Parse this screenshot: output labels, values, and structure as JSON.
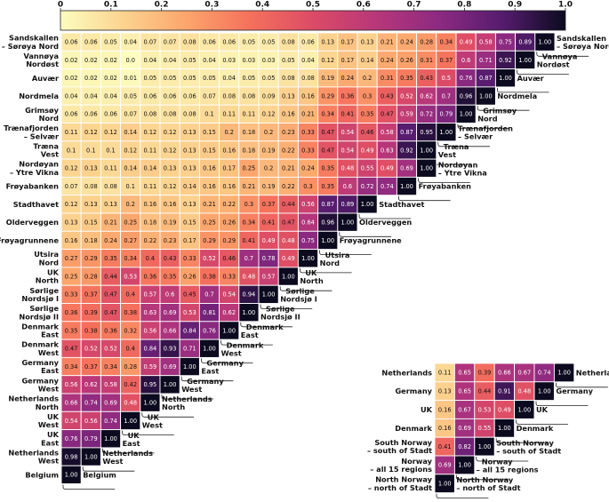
{
  "chart_data": [
    {
      "type": "heatmap",
      "title": "",
      "colorbar": {
        "min": 0,
        "max": 1,
        "ticks": [
          0,
          0.1,
          0.2,
          0.3,
          0.4,
          0.5,
          0.6,
          0.7,
          0.8,
          0.9,
          1.0
        ],
        "tick_labels": [
          "0",
          "0.1",
          "0.2",
          "0.3",
          "0.4",
          "0.5",
          "0.6",
          "0.7",
          "0.8",
          "0.9",
          "1.0"
        ],
        "colormap": "magma"
      },
      "rows": [
        {
          "label": [
            "Sandskallen",
            "– Sørøya Nord"
          ],
          "values": [
            0.06,
            0.06,
            0.05,
            0.04,
            0.07,
            0.07,
            0.08,
            0.06,
            0.06,
            0.05,
            0.05,
            0.08,
            0.06,
            0.13,
            0.17,
            0.13,
            0.21,
            0.24,
            0.28,
            0.34,
            0.49,
            0.58,
            0.75,
            0.89,
            1.0
          ]
        },
        {
          "label": [
            "Vannøya",
            "Nordøst"
          ],
          "values": [
            0.02,
            0.02,
            0.02,
            0.0,
            0.04,
            0.04,
            0.05,
            0.04,
            0.03,
            0.03,
            0.03,
            0.05,
            0.04,
            0.12,
            0.17,
            0.14,
            0.24,
            0.26,
            0.31,
            0.37,
            0.6,
            0.71,
            0.92,
            1.0
          ]
        },
        {
          "label": [
            "Auvær"
          ],
          "values": [
            0.02,
            0.02,
            0.02,
            0.01,
            0.05,
            0.05,
            0.05,
            0.05,
            0.04,
            0.05,
            0.05,
            0.08,
            0.08,
            0.19,
            0.24,
            0.2,
            0.31,
            0.35,
            0.43,
            0.5,
            0.76,
            0.87,
            1.0
          ]
        },
        {
          "label": [
            "Nordmela"
          ],
          "values": [
            0.04,
            0.04,
            0.04,
            0.05,
            0.06,
            0.06,
            0.06,
            0.07,
            0.08,
            0.08,
            0.09,
            0.13,
            0.16,
            0.29,
            0.36,
            0.3,
            0.43,
            0.52,
            0.62,
            0.7,
            0.96,
            1.0
          ]
        },
        {
          "label": [
            "Grimsøy",
            "Nord"
          ],
          "values": [
            0.06,
            0.06,
            0.06,
            0.07,
            0.08,
            0.08,
            0.08,
            0.1,
            0.11,
            0.11,
            0.12,
            0.16,
            0.21,
            0.34,
            0.41,
            0.35,
            0.47,
            0.59,
            0.72,
            0.79,
            1.0
          ]
        },
        {
          "label": [
            "Trænafjorden",
            "– Selvær"
          ],
          "values": [
            0.11,
            0.12,
            0.12,
            0.14,
            0.12,
            0.12,
            0.13,
            0.15,
            0.2,
            0.18,
            0.2,
            0.23,
            0.33,
            0.47,
            0.54,
            0.46,
            0.58,
            0.87,
            0.95,
            1.0
          ]
        },
        {
          "label": [
            "Træna",
            "Vest"
          ],
          "values": [
            0.1,
            0.1,
            0.1,
            0.12,
            0.11,
            0.12,
            0.13,
            0.15,
            0.16,
            0.18,
            0.19,
            0.22,
            0.33,
            0.47,
            0.54,
            0.49,
            0.63,
            0.92,
            1.0
          ]
        },
        {
          "label": [
            "Nordøyan",
            "– Ytre Vikna"
          ],
          "values": [
            0.12,
            0.13,
            0.11,
            0.14,
            0.14,
            0.13,
            0.13,
            0.16,
            0.17,
            0.25,
            0.2,
            0.21,
            0.24,
            0.35,
            0.48,
            0.55,
            0.49,
            0.69,
            1.0
          ]
        },
        {
          "label": [
            "Frøyabanken"
          ],
          "values": [
            0.07,
            0.08,
            0.08,
            0.1,
            0.11,
            0.12,
            0.14,
            0.16,
            0.16,
            0.21,
            0.19,
            0.22,
            0.3,
            0.35,
            0.6,
            0.72,
            0.74,
            1.0
          ]
        },
        {
          "label": [
            "Stadthavet"
          ],
          "values": [
            0.12,
            0.13,
            0.13,
            0.2,
            0.16,
            0.16,
            0.13,
            0.21,
            0.22,
            0.3,
            0.37,
            0.44,
            0.56,
            0.87,
            0.89,
            1.0
          ]
        },
        {
          "label": [
            "Olderveggen"
          ],
          "values": [
            0.13,
            0.15,
            0.21,
            0.25,
            0.18,
            0.19,
            0.15,
            0.25,
            0.26,
            0.34,
            0.41,
            0.47,
            0.64,
            0.96,
            1.0
          ]
        },
        {
          "label": [
            "Frøyagrunnene"
          ],
          "values": [
            0.16,
            0.18,
            0.24,
            0.27,
            0.22,
            0.23,
            0.17,
            0.29,
            0.29,
            0.41,
            0.49,
            0.48,
            0.75,
            1.0
          ]
        },
        {
          "label": [
            "Utsira",
            "Nord"
          ],
          "values": [
            0.27,
            0.29,
            0.35,
            0.34,
            0.4,
            0.43,
            0.33,
            0.52,
            0.46,
            0.7,
            0.78,
            0.49,
            1.0
          ]
        },
        {
          "label": [
            "UK",
            "North"
          ],
          "values": [
            0.25,
            0.28,
            0.44,
            0.53,
            0.36,
            0.35,
            0.26,
            0.38,
            0.33,
            0.48,
            0.57,
            1.0
          ]
        },
        {
          "label": [
            "Sørlige",
            "Nordsjø I"
          ],
          "values": [
            0.33,
            0.37,
            0.47,
            0.4,
            0.57,
            0.6,
            0.45,
            0.7,
            0.54,
            0.94,
            1.0
          ]
        },
        {
          "label": [
            "Sørlige",
            "Nordsjø II"
          ],
          "values": [
            0.36,
            0.39,
            0.47,
            0.38,
            0.63,
            0.69,
            0.53,
            0.81,
            0.62,
            1.0
          ]
        },
        {
          "label": [
            "Denmark",
            "East"
          ],
          "values": [
            0.35,
            0.38,
            0.36,
            0.32,
            0.56,
            0.66,
            0.84,
            0.76,
            1.0
          ]
        },
        {
          "label": [
            "Denmark",
            "West"
          ],
          "values": [
            0.47,
            0.52,
            0.52,
            0.4,
            0.84,
            0.93,
            0.71,
            1.0
          ]
        },
        {
          "label": [
            "Germany",
            "East"
          ],
          "values": [
            0.34,
            0.37,
            0.34,
            0.28,
            0.59,
            0.69,
            1.0
          ]
        },
        {
          "label": [
            "Germany",
            "West"
          ],
          "values": [
            0.56,
            0.62,
            0.58,
            0.42,
            0.95,
            1.0
          ]
        },
        {
          "label": [
            "Netherlands",
            "North"
          ],
          "values": [
            0.66,
            0.74,
            0.69,
            0.48,
            1.0
          ]
        },
        {
          "label": [
            "UK",
            "West"
          ],
          "values": [
            0.54,
            0.56,
            0.74,
            1.0
          ]
        },
        {
          "label": [
            "UK",
            "East"
          ],
          "values": [
            0.76,
            0.79,
            1.0
          ]
        },
        {
          "label": [
            "Netherlands",
            "West"
          ],
          "values": [
            0.98,
            1.0
          ]
        },
        {
          "label": [
            "Belgium"
          ],
          "values": [
            1.0
          ]
        }
      ]
    },
    {
      "type": "heatmap",
      "title": "",
      "rows": [
        {
          "label": [
            "Netherlands"
          ],
          "values": [
            0.11,
            0.65,
            0.39,
            0.66,
            0.67,
            0.74,
            1.0
          ]
        },
        {
          "label": [
            "Germany"
          ],
          "values": [
            0.13,
            0.65,
            0.44,
            0.91,
            0.48,
            1.0
          ]
        },
        {
          "label": [
            "UK"
          ],
          "values": [
            0.16,
            0.67,
            0.53,
            0.49,
            1.0
          ]
        },
        {
          "label": [
            "Denmark"
          ],
          "values": [
            0.16,
            0.69,
            0.55,
            1.0
          ]
        },
        {
          "label": [
            "South Norway",
            "– south of Stadt"
          ],
          "values": [
            0.41,
            0.82,
            1.0
          ]
        },
        {
          "label": [
            "Norway",
            "– all 15 regions"
          ],
          "values": [
            0.69,
            1.0
          ]
        },
        {
          "label": [
            "North Norway",
            "– north of Stadt"
          ],
          "values": [
            1.0
          ]
        }
      ]
    }
  ]
}
